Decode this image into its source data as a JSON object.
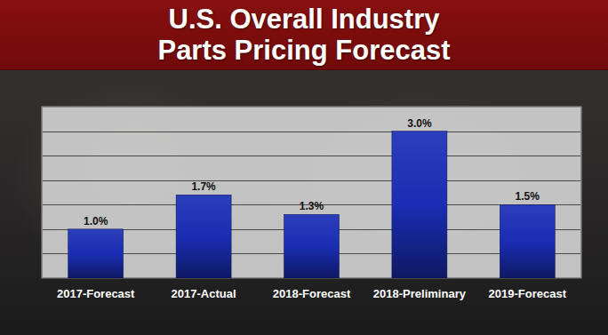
{
  "chart_data": {
    "type": "bar",
    "title": "U.S. Overall Industry\nParts Pricing Forecast",
    "categories": [
      "2017-Forecast",
      "2017-Actual",
      "2018-Forecast",
      "2018-Preliminary",
      "2019-Forecast"
    ],
    "values": [
      1.0,
      1.7,
      1.3,
      3.0,
      1.5
    ],
    "value_labels": [
      "1.0%",
      "1.7%",
      "1.3%",
      "3.0%",
      "1.5%"
    ],
    "color": "#1a2db4",
    "ylim": [
      0,
      3.5
    ],
    "yticks": [
      0,
      0.5,
      1,
      1.5,
      2,
      2.5,
      3,
      3.5
    ],
    "grid": true,
    "data_labels": true,
    "tick_labels": "x"
  }
}
